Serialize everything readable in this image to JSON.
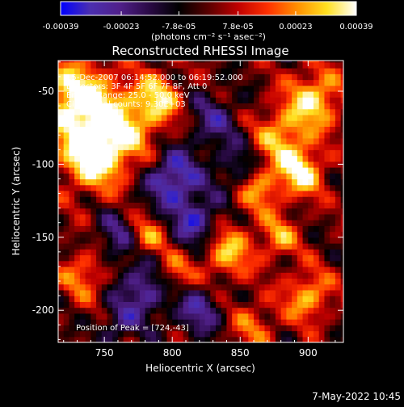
{
  "chart_data": {
    "type": "heatmap",
    "title": "Reconstructed RHESSI Image",
    "xlabel": "Heliocentric X (arcsec)",
    "ylabel": "Heliocentric Y (arcsec)",
    "xlim": [
      716,
      926
    ],
    "ylim": [
      -222,
      -29
    ],
    "x_ticks": [
      750,
      800,
      850,
      900
    ],
    "y_ticks": [
      -50,
      -100,
      -150,
      -200
    ],
    "colorbar": {
      "ticks": [
        -0.00039,
        -0.00023,
        -7.8e-05,
        7.8e-05,
        0.00023,
        0.00039
      ],
      "tick_labels": [
        "-0.00039",
        "-0.00023",
        "-7.8e-05",
        "7.8e-05",
        "0.00023",
        "0.00039"
      ],
      "unit_label": "(photons cm⁻² s⁻¹ asec⁻²)",
      "range": [
        -0.00039,
        0.00039
      ],
      "colors": [
        "#0000ff",
        "#4b2fb0",
        "#50208a",
        "#2a0a45",
        "#000000",
        "#5a0000",
        "#c00000",
        "#ff3000",
        "#ff9000",
        "#ffe020",
        "#ffffff"
      ]
    },
    "info_lines": [
      "15-Dec-2007 06:14:52.000 to 06:19:52.000",
      "Detectors: 3F 4F 5F 6F 7F 8F, Att 0",
      "Energy Range: 25.0 - 50.0 keV",
      "Clean    Total counts: 9.30E+03"
    ],
    "peak_label": "Position of Peak = [724,-43]",
    "peak": [
      724,
      -43
    ],
    "sources": [
      {
        "x": 728,
        "y": -55,
        "v": 0.00039,
        "r": 18
      },
      {
        "x": 760,
        "y": -75,
        "v": 0.00032,
        "r": 20
      },
      {
        "x": 740,
        "y": -95,
        "v": 0.00035,
        "r": 16
      },
      {
        "x": 790,
        "y": -55,
        "v": 0.00028,
        "r": 12
      },
      {
        "x": 905,
        "y": -55,
        "v": 0.00033,
        "r": 14
      },
      {
        "x": 880,
        "y": -80,
        "v": 0.00026,
        "r": 14
      },
      {
        "x": 895,
        "y": -105,
        "v": 0.00034,
        "r": 12
      },
      {
        "x": 862,
        "y": -115,
        "v": 0.0003,
        "r": 12
      },
      {
        "x": 840,
        "y": -160,
        "v": 0.00029,
        "r": 13
      },
      {
        "x": 878,
        "y": -150,
        "v": 0.00024,
        "r": 10
      },
      {
        "x": 780,
        "y": -150,
        "v": 0.00026,
        "r": 10
      },
      {
        "x": 800,
        "y": -175,
        "v": 0.00024,
        "r": 10
      },
      {
        "x": 900,
        "y": -190,
        "v": 0.00028,
        "r": 12
      },
      {
        "x": 735,
        "y": -175,
        "v": 0.00022,
        "r": 12
      },
      {
        "x": 860,
        "y": -210,
        "v": 0.00018,
        "r": 12
      },
      {
        "x": 800,
        "y": -110,
        "v": -0.00036,
        "r": 14
      },
      {
        "x": 818,
        "y": -140,
        "v": -0.0003,
        "r": 12
      },
      {
        "x": 780,
        "y": -185,
        "v": -0.0003,
        "r": 14
      },
      {
        "x": 760,
        "y": -150,
        "v": -0.00022,
        "r": 12
      },
      {
        "x": 850,
        "y": -105,
        "v": -0.00024,
        "r": 12
      },
      {
        "x": 830,
        "y": -70,
        "v": -0.0002,
        "r": 14
      },
      {
        "x": 820,
        "y": -200,
        "v": -0.00024,
        "r": 12
      },
      {
        "x": 760,
        "y": -210,
        "v": -0.00018,
        "r": 10
      }
    ]
  },
  "footer": {
    "timestamp": "7-May-2022 10:45"
  }
}
